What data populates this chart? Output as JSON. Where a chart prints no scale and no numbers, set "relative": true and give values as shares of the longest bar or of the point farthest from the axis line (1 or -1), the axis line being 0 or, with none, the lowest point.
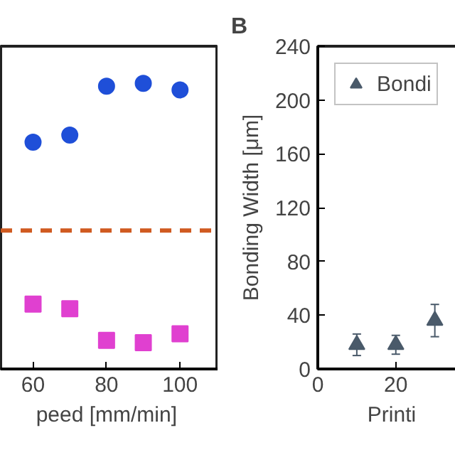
{
  "chart_data": [
    {
      "type": "scatter",
      "xlabel": "peed  [mm/min]",
      "relative": true,
      "x": [
        60,
        70,
        80,
        90,
        100
      ],
      "xlim": [
        51.2,
        110.4
      ],
      "xticks": [
        60,
        80,
        100
      ],
      "tick_labels": "x",
      "grid": false,
      "legend": false,
      "series": [
        {
          "color": "#1f4fd8",
          "marker": "circle",
          "values": [
            0.794,
            0.819,
            0.99,
            1.0,
            0.977
          ]
        },
        {
          "color": "#e040d0",
          "marker": "square",
          "values": [
            0.227,
            0.211,
            0.1,
            0.092,
            0.123
          ]
        }
      ],
      "ref_lines": [
        {
          "axis": "y",
          "value": 0.485,
          "color": "#d05a20",
          "line_style": "dashed"
        }
      ]
    },
    {
      "type": "scatter",
      "title": "B",
      "xlabel": "Printi",
      "ylabel": "Bonding Width [μm]",
      "x": [
        10,
        20,
        30
      ],
      "xlim": [
        0,
        37.9
      ],
      "xticks": [
        0,
        20
      ],
      "ylim": [
        0,
        240
      ],
      "yticks": [
        0,
        40,
        80,
        120,
        160,
        200,
        240
      ],
      "grid": false,
      "legend": "top left",
      "marker": "triangle",
      "series": [
        {
          "name": "Bondi",
          "color": "#4a5a6a",
          "values": [
            18,
            18,
            36
          ],
          "errors": [
            8,
            7,
            12
          ]
        }
      ]
    }
  ]
}
